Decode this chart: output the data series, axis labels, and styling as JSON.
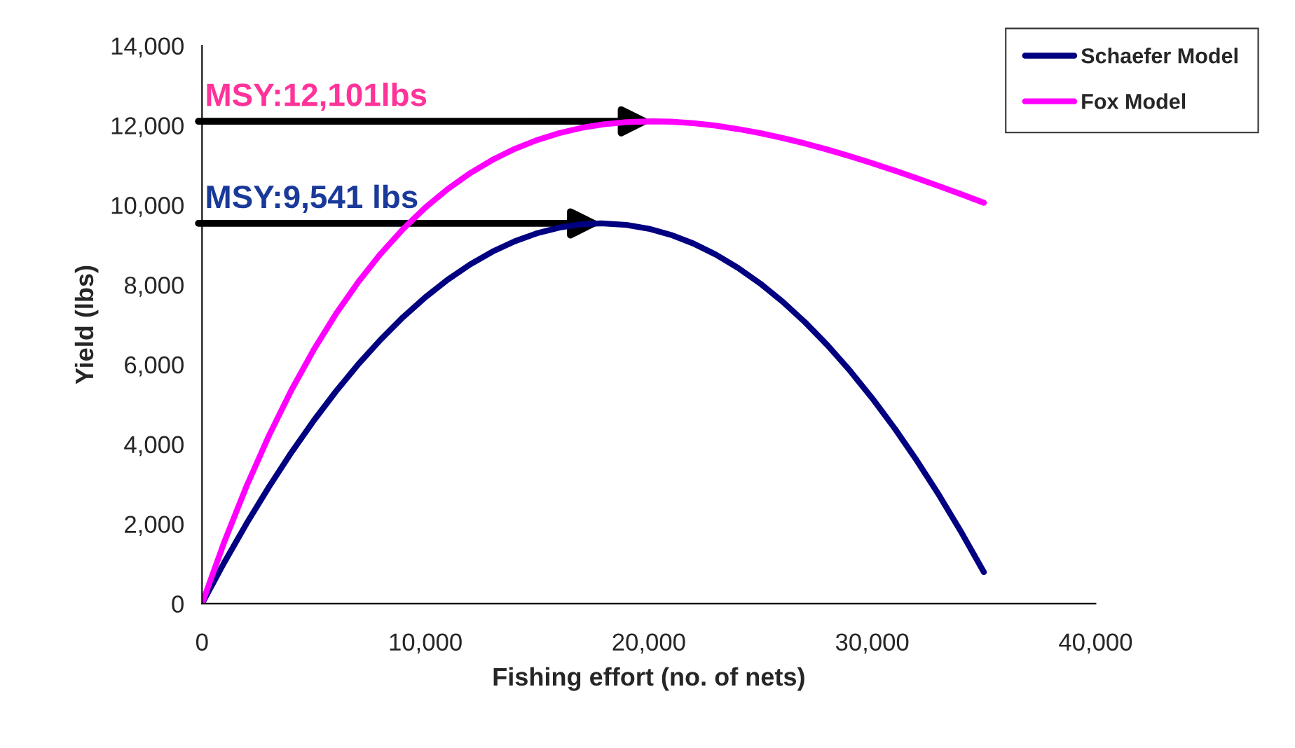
{
  "chart_data": {
    "type": "line",
    "xlabel": "Fishing effort (no. of nets)",
    "ylabel": "Yield (lbs)",
    "xlim": [
      0,
      40000
    ],
    "ylim": [
      0,
      14000
    ],
    "xticks": [
      0,
      {
        "value": 10000,
        "label": "10,000"
      },
      {
        "value": 20000,
        "label": "20,000"
      },
      {
        "value": 30000,
        "label": "30,000"
      },
      {
        "value": 40000,
        "label": "40,000"
      }
    ],
    "yticks": [
      0,
      {
        "value": 2000,
        "label": "2,000"
      },
      {
        "value": 4000,
        "label": "4,000"
      },
      {
        "value": 6000,
        "label": "6,000"
      },
      {
        "value": 8000,
        "label": "8,000"
      },
      {
        "value": 10000,
        "label": "10,000"
      },
      {
        "value": 12000,
        "label": "12,000"
      },
      {
        "value": 14000,
        "label": "14,000"
      }
    ],
    "grid": false,
    "legend": "top right",
    "marker": "none",
    "line_style": "solid",
    "series": [
      {
        "name": "Schaefer Model",
        "color": "#000080",
        "x": [
          0,
          1000,
          2000,
          3000,
          4000,
          5000,
          6000,
          7000,
          8000,
          9000,
          10000,
          11000,
          12000,
          13000,
          14000,
          15000,
          16000,
          17000,
          17878,
          19000,
          20000,
          21000,
          22000,
          23000,
          24000,
          25000,
          26000,
          27000,
          28000,
          29000,
          30000,
          31000,
          32000,
          33000,
          34000,
          35000
        ],
        "values": [
          0,
          1037,
          2015,
          2933,
          3792,
          4591,
          5329,
          6009,
          6628,
          7188,
          7688,
          8129,
          8510,
          8831,
          9092,
          9294,
          9436,
          9518,
          9541,
          9503,
          9407,
          9250,
          9034,
          8758,
          8422,
          8027,
          7572,
          7057,
          6482,
          5849,
          5155,
          4401,
          3588,
          2715,
          1782,
          790
        ]
      },
      {
        "name": "Fox Model",
        "color": "#ff00ff",
        "x": [
          0,
          1000,
          2000,
          3000,
          4000,
          5000,
          6000,
          7000,
          8000,
          9000,
          10000,
          11000,
          12000,
          13000,
          14000,
          15000,
          16000,
          17000,
          18000,
          19000,
          20150,
          21000,
          22000,
          23000,
          24000,
          25000,
          26000,
          27000,
          28000,
          29000,
          30000,
          31000,
          32000,
          33000,
          34000,
          35000
        ],
        "values": [
          0,
          1553,
          2957,
          4220,
          5355,
          6369,
          7273,
          8074,
          8780,
          9400,
          9939,
          10403,
          10800,
          11133,
          11409,
          11632,
          11806,
          11939,
          12028,
          12082,
          12101,
          12092,
          12053,
          11993,
          11907,
          11803,
          11681,
          11544,
          11391,
          11225,
          11049,
          10865,
          10673,
          10473,
          10268,
          10058
        ]
      }
    ],
    "annotations": [
      "MSY:12,101lbs",
      "MSY:9,541 lbs"
    ]
  }
}
